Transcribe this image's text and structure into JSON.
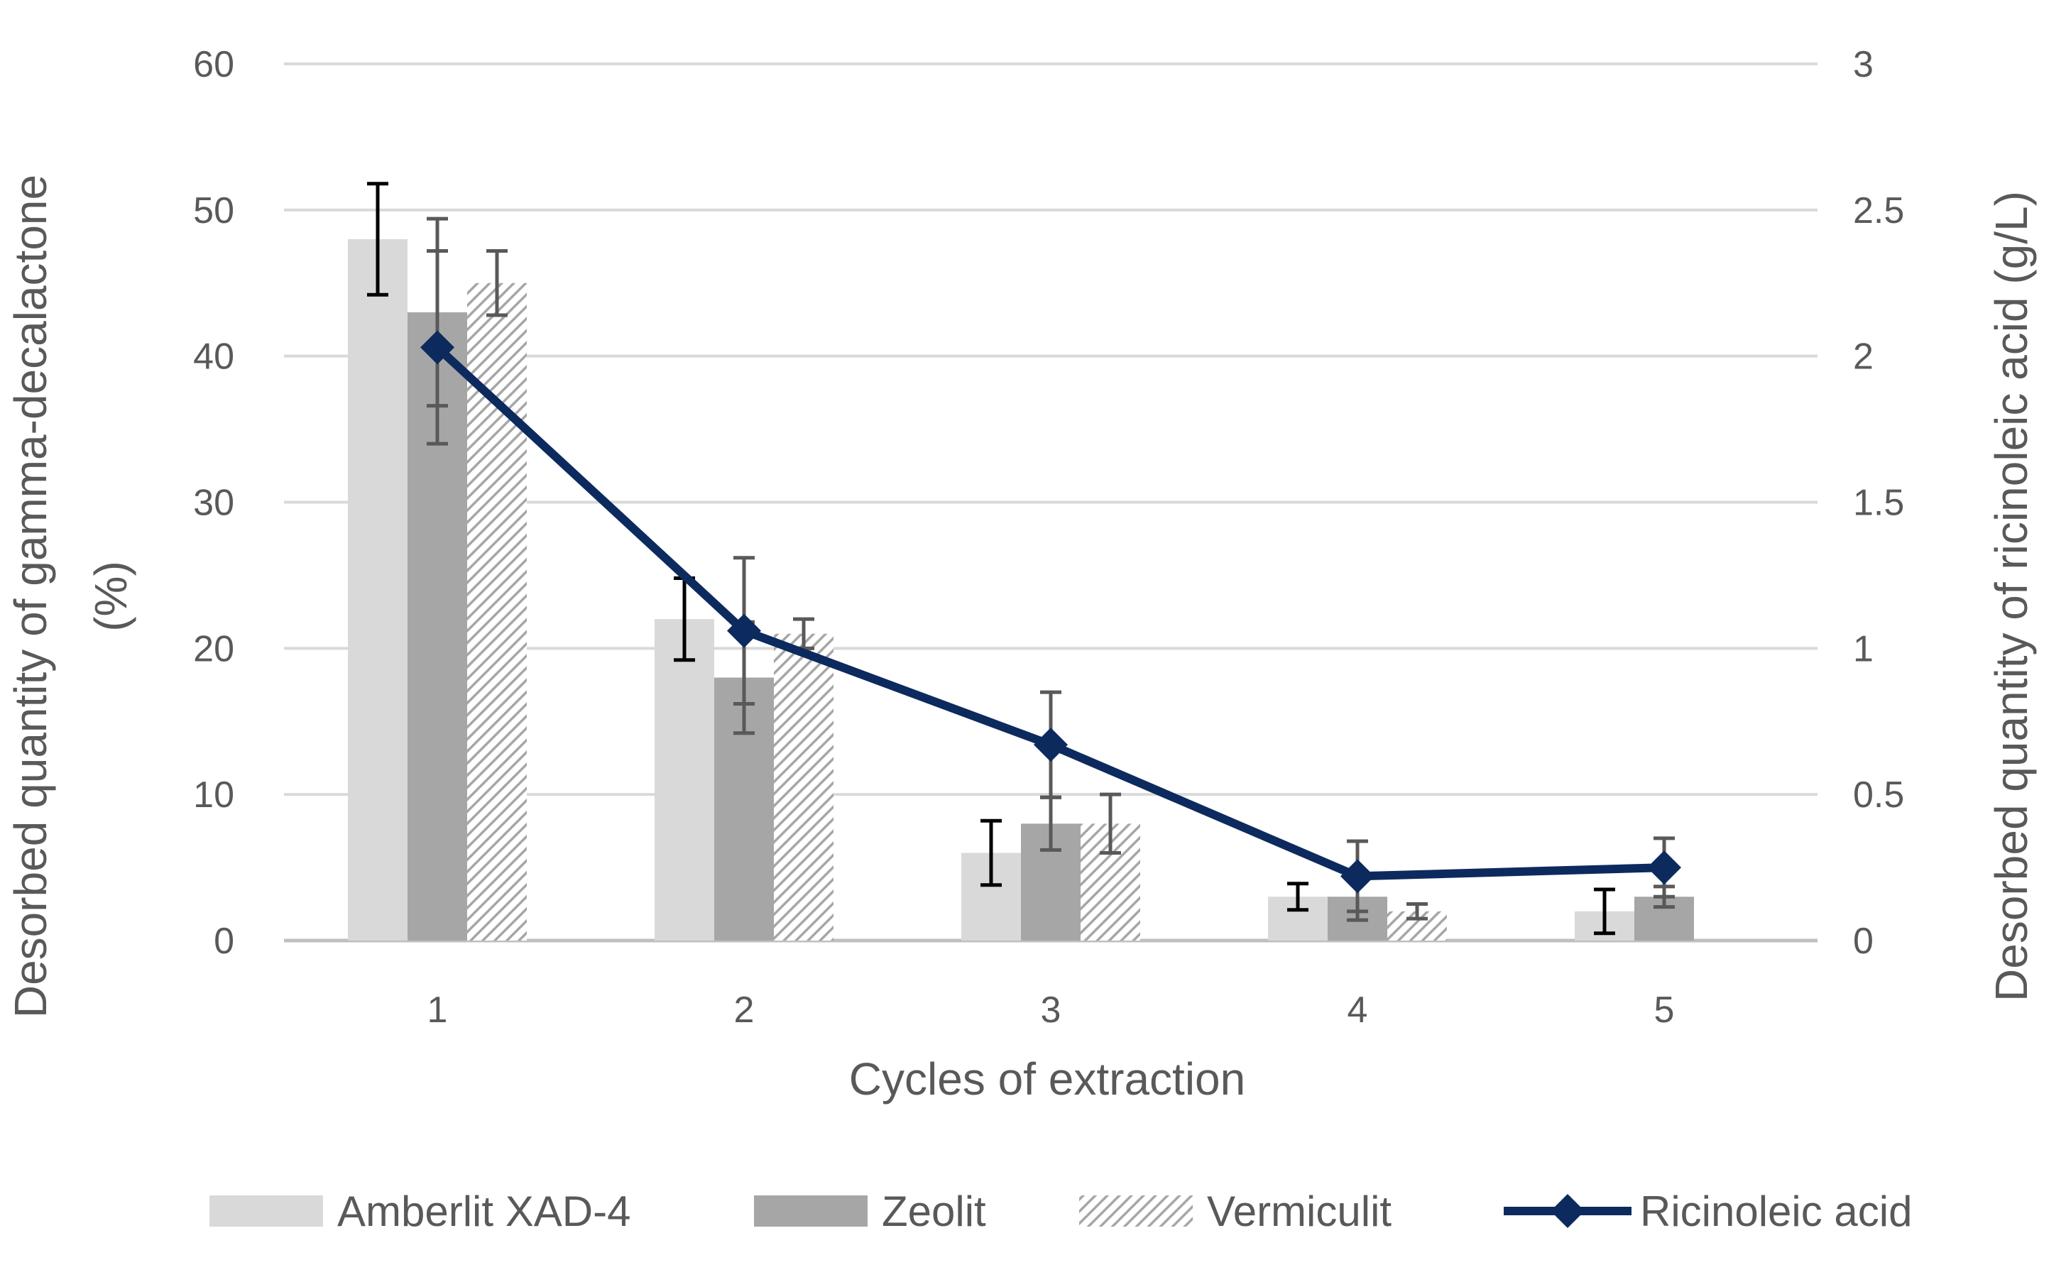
{
  "chart_data": {
    "type": "bar",
    "title": "",
    "categories": [
      "1",
      "2",
      "3",
      "4",
      "5"
    ],
    "xlabel": "Cycles of extraction",
    "ylabel_line1": "Desorbed quantity of gamma-decalactone",
    "ylabel_line2": "(%)",
    "y2label": "Desorbed quantity of ricinoleic acid (g/L)",
    "ylim": [
      0,
      60
    ],
    "yticks": [
      "0",
      "10",
      "20",
      "30",
      "40",
      "50",
      "60"
    ],
    "y2lim": [
      0,
      3
    ],
    "y2ticks": [
      "0",
      "0.5",
      "1",
      "1.5",
      "2",
      "2.5",
      "3"
    ],
    "grid": true,
    "legend_position": "bottom",
    "series": [
      {
        "name": "Amberlit XAD-4",
        "kind": "bar",
        "axis": "left",
        "color": "#d9d9d9",
        "pattern": "solid",
        "errcolor": "#000000",
        "values": [
          48,
          22,
          6,
          3,
          2
        ],
        "errors": [
          3.8,
          2.8,
          2.2,
          0.9,
          1.5
        ]
      },
      {
        "name": "Zeolit",
        "kind": "bar",
        "axis": "left",
        "color": "#a6a6a6",
        "pattern": "solid",
        "errcolor": "#595959",
        "values": [
          43,
          18,
          8,
          3,
          3
        ],
        "errors": [
          6.4,
          3.8,
          1.8,
          1.6,
          0.7
        ]
      },
      {
        "name": "Vermiculit",
        "kind": "bar",
        "axis": "left",
        "color": "#a6a6a6",
        "pattern": "hatch",
        "errcolor": "#595959",
        "values": [
          45,
          21,
          8,
          2,
          0
        ],
        "errors": [
          2.2,
          1.0,
          2.0,
          0.5,
          0
        ]
      },
      {
        "name": "Ricinoleic acid",
        "kind": "line",
        "axis": "right",
        "color": "#0d2a5e",
        "marker": "diamond",
        "errcolor": "#595959",
        "values": [
          2.03,
          1.06,
          0.67,
          0.22,
          0.25
        ],
        "errors": [
          0.33,
          0.25,
          0.18,
          0.12,
          0.1
        ]
      }
    ]
  }
}
